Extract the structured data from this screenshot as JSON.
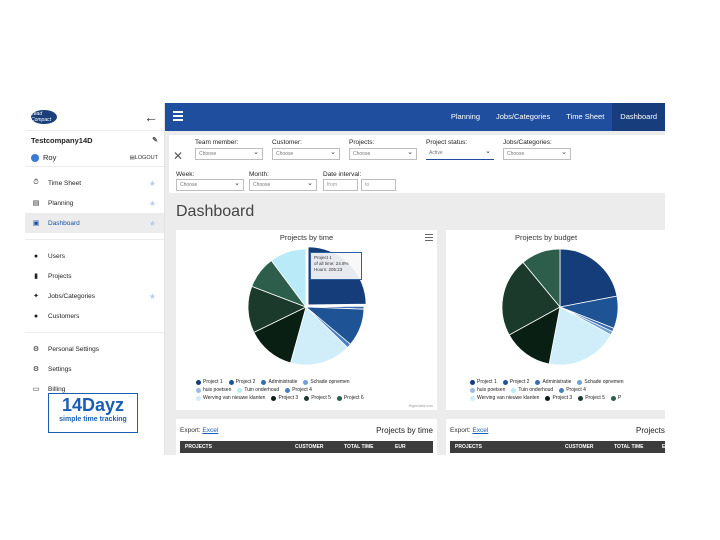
{
  "sidebar": {
    "mini_logo": "Lead Compact",
    "back_icon": "←",
    "company": "Testcompany14D",
    "user": "Roy",
    "logout": "LOGOUT",
    "group1": [
      {
        "label": "Time Sheet",
        "icon": "⏱"
      },
      {
        "label": "Planning",
        "icon": "▤"
      },
      {
        "label": "Dashboard",
        "icon": "▣"
      }
    ],
    "group2": [
      {
        "label": "Users",
        "icon": "👥"
      },
      {
        "label": "Projects",
        "icon": "▮"
      },
      {
        "label": "Jobs/Categories",
        "icon": "🔧"
      },
      {
        "label": "Customers",
        "icon": "👥"
      }
    ],
    "group3": [
      {
        "label": "Personal Settings",
        "icon": "⚙"
      },
      {
        "label": "Settings",
        "icon": "⚙"
      },
      {
        "label": "Billing",
        "icon": "▭"
      }
    ],
    "brand_big": "14Dayz",
    "brand_sub": "simple time tracking"
  },
  "topbar": {
    "tabs": [
      "Planning",
      "Jobs/Categories",
      "Time Sheet",
      "Dashboard"
    ]
  },
  "filters": {
    "team_member": {
      "label": "Team member:",
      "value": "Choose"
    },
    "customer": {
      "label": "Customer:",
      "value": "Choose"
    },
    "projects": {
      "label": "Projects:",
      "value": "Choose"
    },
    "project_status": {
      "label": "Project status:",
      "value": "Active"
    },
    "jobs": {
      "label": "Jobs/Categories:",
      "value": "Choose"
    },
    "week": {
      "label": "Week:",
      "value": "Choose"
    },
    "month": {
      "label": "Month:",
      "value": "Choose"
    },
    "date_interval": {
      "label": "Date interval:",
      "from": "from",
      "to": "to"
    }
  },
  "page_title": "Dashboard",
  "charts": {
    "time_title": "Projects by time",
    "budget_title": "Projects by budget",
    "credits": "Highcharts.com",
    "tooltip": {
      "line1": "Project 1",
      "line2": "of all time: 24.8%",
      "line3": "Hours: 205:23"
    }
  },
  "colors": {
    "project1": "#153d7a",
    "project2": "#1e5496",
    "administratie": "#3a6cb0",
    "schade": "#6f9fd3",
    "huis": "#9dbbe0",
    "tuin": "#b8eaf7",
    "project4": "#4a7fc0",
    "werving": "#cfeefa",
    "project3": "#0a1f14",
    "project5": "#1c3a2c",
    "project6": "#2d5e4c"
  },
  "legend": {
    "row1": [
      "Project 1",
      "Project 2",
      "Administratie",
      "Schade opnemen"
    ],
    "row2": [
      "huis poetsen",
      "Tuin onderhoud",
      "Project 4"
    ],
    "row3": [
      "Werving van nieuwe klanten",
      "Project 3",
      "Project 5",
      "Project 6"
    ],
    "budget_row1": [
      "Project 1",
      "Project 2",
      "Administratie",
      "Schade opnemen"
    ],
    "budget_row2": [
      "huis poetsen",
      "Tuin onderhoud",
      "Project 4"
    ],
    "budget_row3": [
      "Werving van nieuwe klanten",
      "Project 3",
      "Project 5",
      "P"
    ]
  },
  "chart_data": [
    {
      "type": "pie",
      "title": "Projects by time",
      "series": [
        {
          "name": "Project 1",
          "value": 24.8
        },
        {
          "name": "Administratie",
          "value": 0.8
        },
        {
          "name": "Project 2",
          "value": 10.5
        },
        {
          "name": "Project 4",
          "value": 1.2
        },
        {
          "name": "Werving van nieuwe klanten",
          "value": 17.0
        },
        {
          "name": "Project 3",
          "value": 13.5
        },
        {
          "name": "Project 5",
          "value": 13.0
        },
        {
          "name": "Project 6",
          "value": 9.0
        },
        {
          "name": "Tuin onderhoud",
          "value": 10.2
        }
      ]
    },
    {
      "type": "pie",
      "title": "Projects by budget",
      "series": [
        {
          "name": "Project 1",
          "value": 22.0
        },
        {
          "name": "Project 2",
          "value": 9.0
        },
        {
          "name": "Administratie",
          "value": 1.0
        },
        {
          "name": "Schade opnemen",
          "value": 1.0
        },
        {
          "name": "Werving van nieuwe klanten",
          "value": 20.0
        },
        {
          "name": "Project 3",
          "value": 14.0
        },
        {
          "name": "Project 5",
          "value": 22.0
        },
        {
          "name": "Project 6",
          "value": 11.0
        }
      ]
    }
  ],
  "tables": {
    "left": {
      "export": "Export:",
      "excel": "Excel",
      "title": "Projects by time",
      "headers": [
        "PROJECTS",
        "CUSTOMER",
        "TOTAL TIME",
        "EUR"
      ]
    },
    "right": {
      "export": "Export:",
      "excel": "Excel",
      "title": "Projects",
      "headers": [
        "PROJECTS",
        "CUSTOMER",
        "TOTAL TIME",
        "E"
      ]
    }
  }
}
